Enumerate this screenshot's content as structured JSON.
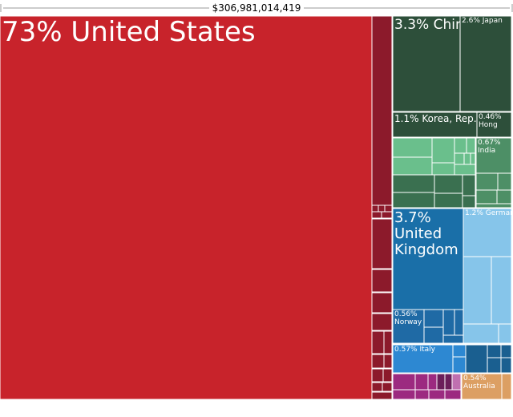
{
  "chart_data": {
    "type": "treemap",
    "title": "$306,981,014,419",
    "categories": [
      "United States",
      "China",
      "Japan",
      "Korea, Rep.",
      "Hong",
      "India",
      "United Kingdom",
      "Germany",
      "Norway",
      "Italy",
      "Australia"
    ],
    "values": [
      73,
      3.3,
      2.6,
      1.1,
      0.46,
      0.67,
      3.7,
      1.2,
      0.56,
      0.57,
      0.54
    ],
    "value_labels": [
      "73%",
      "3.3%",
      "2.6%",
      "1.1%",
      "0.46%",
      "0.67%",
      "3.7%",
      "1.2%",
      "0.56%",
      "0.57%",
      "0.54%"
    ],
    "colors": [
      "#c8232b",
      "#2d4f3a",
      "#2d4f3a",
      "#2d4f3a",
      "#2d4f3a",
      "#4d8f66",
      "#1a6fa8",
      "#86c5ea",
      "#1f6aa5",
      "#2d88d2",
      "#dc9f63"
    ]
  }
}
